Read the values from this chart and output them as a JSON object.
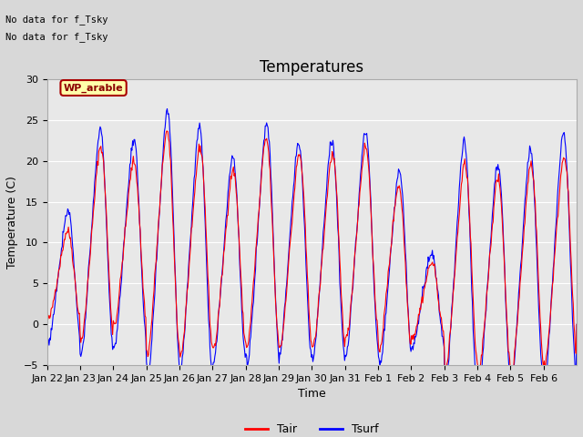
{
  "title": "Temperatures",
  "xlabel": "Time",
  "ylabel": "Temperature (C)",
  "ylim": [
    -5,
    30
  ],
  "yticks": [
    -5,
    0,
    5,
    10,
    15,
    20,
    25,
    30
  ],
  "x_tick_labels": [
    "Jan 22",
    "Jan 23",
    "Jan 24",
    "Jan 25",
    "Jan 26",
    "Jan 27",
    "Jan 28",
    "Jan 29",
    "Jan 30",
    "Jan 31",
    "Feb 1",
    "Feb 2",
    "Feb 3",
    "Feb 4",
    "Feb 5",
    "Feb 6"
  ],
  "n_days": 16,
  "tair_color": "#ff0000",
  "tsurf_color": "#0000ff",
  "legend_tair": "Tair",
  "legend_tsurf": "Tsurf",
  "annotation_line1": "No data for f_Tsky",
  "annotation_line2": "No data for f_Tsky",
  "box_label": "WP_arable",
  "fig_facecolor": "#d8d8d8",
  "plot_facecolor": "#e8e8e8",
  "title_fontsize": 12,
  "label_fontsize": 9,
  "tick_fontsize": 8
}
